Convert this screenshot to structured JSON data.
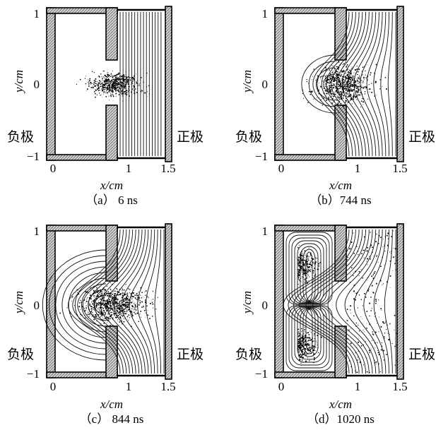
{
  "axis": {
    "y_tick_labels": [
      "1",
      "0",
      "−1"
    ],
    "x_tick_labels": [
      "0",
      "1",
      "1.5"
    ],
    "x_label": "x/cm",
    "y_label": "y/cm"
  },
  "electrodes": {
    "cathode": "负极",
    "anode": "正极"
  },
  "panels": [
    {
      "id": "a",
      "caption": "（a） 6 ns"
    },
    {
      "id": "b",
      "caption": "（b）744 ns"
    },
    {
      "id": "c",
      "caption": "（c） 844 ns"
    },
    {
      "id": "d",
      "caption": "（d）1020 ns"
    }
  ],
  "colors": {
    "wall_fill": "#b9b9b9",
    "ink": "#000000"
  }
}
